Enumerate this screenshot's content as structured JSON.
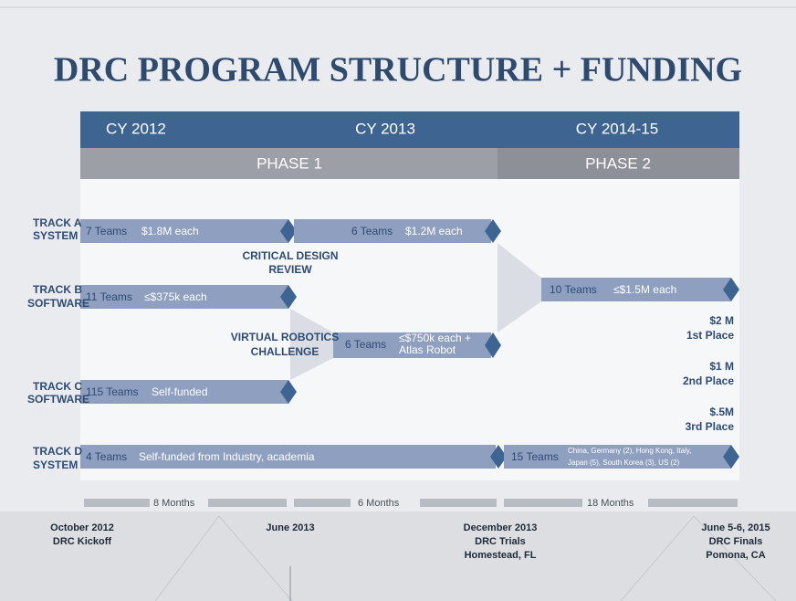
{
  "title": "DRC PROGRAM STRUCTURE + FUNDING",
  "header": {
    "years": [
      "CY 2012",
      "CY 2013",
      "CY 2014-15"
    ],
    "phases": [
      "PHASE 1",
      "PHASE 2"
    ]
  },
  "tracks": [
    {
      "label": [
        "TRACK A",
        "SYSTEM"
      ]
    },
    {
      "label": [
        "TRACK B",
        "SOFTWARE"
      ]
    },
    {
      "label": [
        "TRACK C",
        "SOFTWARE"
      ]
    },
    {
      "label": [
        "TRACK D",
        "SYSTEM"
      ]
    }
  ],
  "bars": [
    {
      "teams": "7 Teams",
      "detail": [
        "$1.8M each"
      ]
    },
    {
      "teams": "6 Teams",
      "detail": [
        "$1.2M each"
      ]
    },
    {
      "teams": "11 Teams",
      "detail": [
        "≤$375k each"
      ]
    },
    {
      "teams": "6 Teams",
      "detail": [
        "≤$750k each +",
        "Atlas Robot"
      ]
    },
    {
      "teams": "115 Teams",
      "detail": [
        "Self-funded"
      ]
    },
    {
      "teams": "10 Teams",
      "detail": [
        "≤$1.5M each"
      ]
    },
    {
      "teams": "4 Teams",
      "detail": [
        "Self-funded from Industry, academia"
      ]
    },
    {
      "teams": "15 Teams",
      "detail": [
        "China, Germany (2), Hong Kong, Italy,",
        "Japan (5), South Korea (3), US (2)"
      ]
    }
  ],
  "milestones": [
    [
      "CRITICAL DESIGN",
      "REVIEW"
    ],
    [
      "VIRTUAL ROBOTICS",
      "CHALLENGE"
    ]
  ],
  "prizes": [
    [
      "$2 M",
      "1st Place"
    ],
    [
      "$1 M",
      "2nd Place"
    ],
    [
      "$.5M",
      "3rd Place"
    ]
  ],
  "durations": [
    "8 Months",
    "6 Months",
    "18 Months"
  ],
  "dates": [
    [
      "October 2012",
      "DRC Kickoff"
    ],
    [
      "June 2013"
    ],
    [
      "December 2013",
      "DRC Trials",
      "Homestead, FL"
    ],
    [
      "June 5-6, 2015",
      "DRC Finals",
      "Pomona, CA"
    ]
  ]
}
